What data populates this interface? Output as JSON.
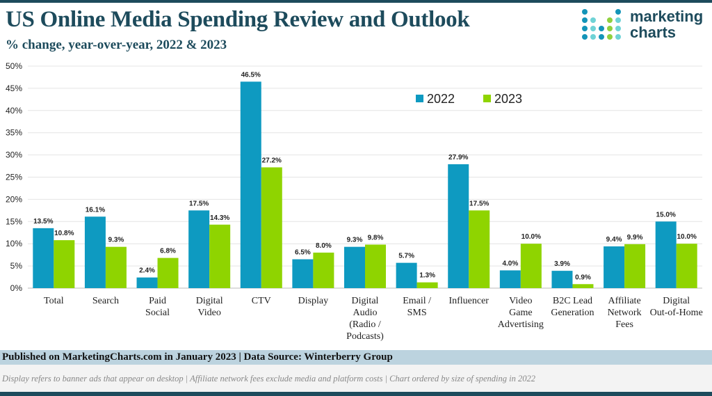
{
  "header": {
    "title": "US Online Media Spending Review and Outlook",
    "subtitle": "% change, year-over-year, 2022 & 2023"
  },
  "logo": {
    "line1": "marketing",
    "line2": "charts"
  },
  "footer": {
    "published": "Published on MarketingCharts.com in January 2023 | Data Source: Winterberry Group",
    "note": "Display refers to banner ads that appear on desktop | Affiliate network fees exclude media and platform costs | Chart ordered by size of spending in 2022"
  },
  "chart_data": {
    "type": "bar",
    "title": "",
    "xlabel": "",
    "ylabel": "",
    "ylim": [
      0,
      50
    ],
    "yticks": [
      "0%",
      "5%",
      "10%",
      "15%",
      "20%",
      "25%",
      "30%",
      "35%",
      "40%",
      "45%",
      "50%"
    ],
    "legend_placement": "top-center",
    "categories": [
      [
        "Total"
      ],
      [
        "Search"
      ],
      [
        "Paid",
        "Social"
      ],
      [
        "Digital",
        "Video"
      ],
      [
        "CTV"
      ],
      [
        "Display"
      ],
      [
        "Digital",
        "Audio",
        "(Radio /",
        "Podcasts)"
      ],
      [
        "Email /",
        "SMS"
      ],
      [
        "Influencer"
      ],
      [
        "Video",
        "Game",
        "Advertising"
      ],
      [
        "B2C Lead",
        "Generation"
      ],
      [
        "Affiliate",
        "Network",
        "Fees"
      ],
      [
        "Digital",
        "Out-of-Home"
      ]
    ],
    "series": [
      {
        "name": "2022",
        "color": "#0e9ac1",
        "values": [
          13.5,
          16.1,
          2.4,
          17.5,
          46.5,
          6.5,
          9.3,
          5.7,
          27.9,
          4.0,
          3.9,
          9.4,
          15.0
        ]
      },
      {
        "name": "2023",
        "color": "#8fd400",
        "values": [
          10.8,
          9.3,
          6.8,
          14.3,
          27.2,
          8.0,
          9.8,
          1.3,
          17.5,
          10.0,
          0.9,
          9.9,
          10.0
        ]
      }
    ]
  }
}
